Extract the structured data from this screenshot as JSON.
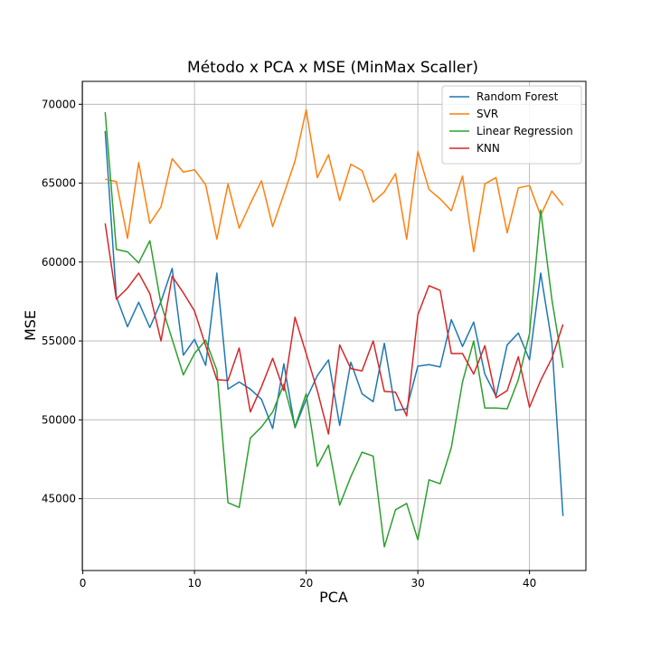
{
  "chart_data": {
    "type": "line",
    "title": "Método x PCA x MSE (MinMax Scaller)",
    "xlabel": "PCA",
    "ylabel": "MSE",
    "xlim": [
      -0.05,
      45.05
    ],
    "ylim": [
      40450,
      71450
    ],
    "xticks": [
      0,
      10,
      20,
      30,
      40
    ],
    "yticks": [
      45000,
      50000,
      55000,
      60000,
      65000,
      70000
    ],
    "grid": true,
    "legend_position": "top-right",
    "x": [
      2,
      3,
      4,
      5,
      6,
      7,
      8,
      9,
      10,
      11,
      12,
      13,
      14,
      15,
      16,
      17,
      18,
      19,
      20,
      21,
      22,
      23,
      24,
      25,
      26,
      27,
      28,
      29,
      30,
      31,
      32,
      33,
      34,
      35,
      36,
      37,
      38,
      39,
      40,
      41,
      42,
      43
    ],
    "series": [
      {
        "name": "Random Forest",
        "color": "#1f77b4",
        "values": [
          68300,
          57800,
          55900,
          57450,
          55850,
          57500,
          59600,
          54100,
          55100,
          53450,
          59300,
          51950,
          52400,
          51950,
          51300,
          49450,
          53550,
          49500,
          51300,
          52800,
          53800,
          49650,
          53650,
          51650,
          51150,
          54850,
          50600,
          50700,
          53400,
          53500,
          53350,
          56350,
          54650,
          56200,
          52900,
          51500,
          54750,
          55500,
          53800,
          59300,
          54900,
          43900
        ]
      },
      {
        "name": "SVR",
        "color": "#ff7f0e",
        "values": [
          65250,
          65100,
          61500,
          66300,
          62450,
          63500,
          66550,
          65700,
          65850,
          64900,
          61450,
          64950,
          62150,
          63700,
          65150,
          62250,
          64300,
          66400,
          69650,
          65350,
          66800,
          63900,
          66200,
          65800,
          63800,
          64450,
          65600,
          61450,
          67000,
          64600,
          64000,
          63250,
          65450,
          60650,
          64950,
          65350,
          61850,
          64700,
          64850,
          62950,
          64500,
          63600
        ]
      },
      {
        "name": "Linear Regression",
        "color": "#2ca02c",
        "values": [
          69500,
          60800,
          60650,
          59950,
          61350,
          57350,
          55100,
          52850,
          54200,
          55050,
          53150,
          44750,
          44450,
          48850,
          49550,
          50500,
          52250,
          49550,
          51650,
          47050,
          48400,
          44600,
          46400,
          47950,
          47700,
          41950,
          44300,
          44700,
          42400,
          46200,
          45950,
          48250,
          52400,
          55000,
          50750,
          50750,
          50700,
          52550,
          55450,
          63300,
          57650,
          53300
        ]
      },
      {
        "name": "KNN",
        "color": "#d62728",
        "values": [
          62450,
          57650,
          58350,
          59300,
          58000,
          55000,
          59100,
          58050,
          56900,
          54700,
          52550,
          52500,
          54550,
          50500,
          52100,
          53900,
          51850,
          56500,
          54200,
          51850,
          49100,
          54750,
          53250,
          53100,
          55000,
          51800,
          51750,
          50250,
          56650,
          58500,
          58200,
          54200,
          54200,
          52900,
          54700,
          51400,
          51850,
          54000,
          50800,
          52500,
          53900,
          56050
        ]
      }
    ]
  }
}
